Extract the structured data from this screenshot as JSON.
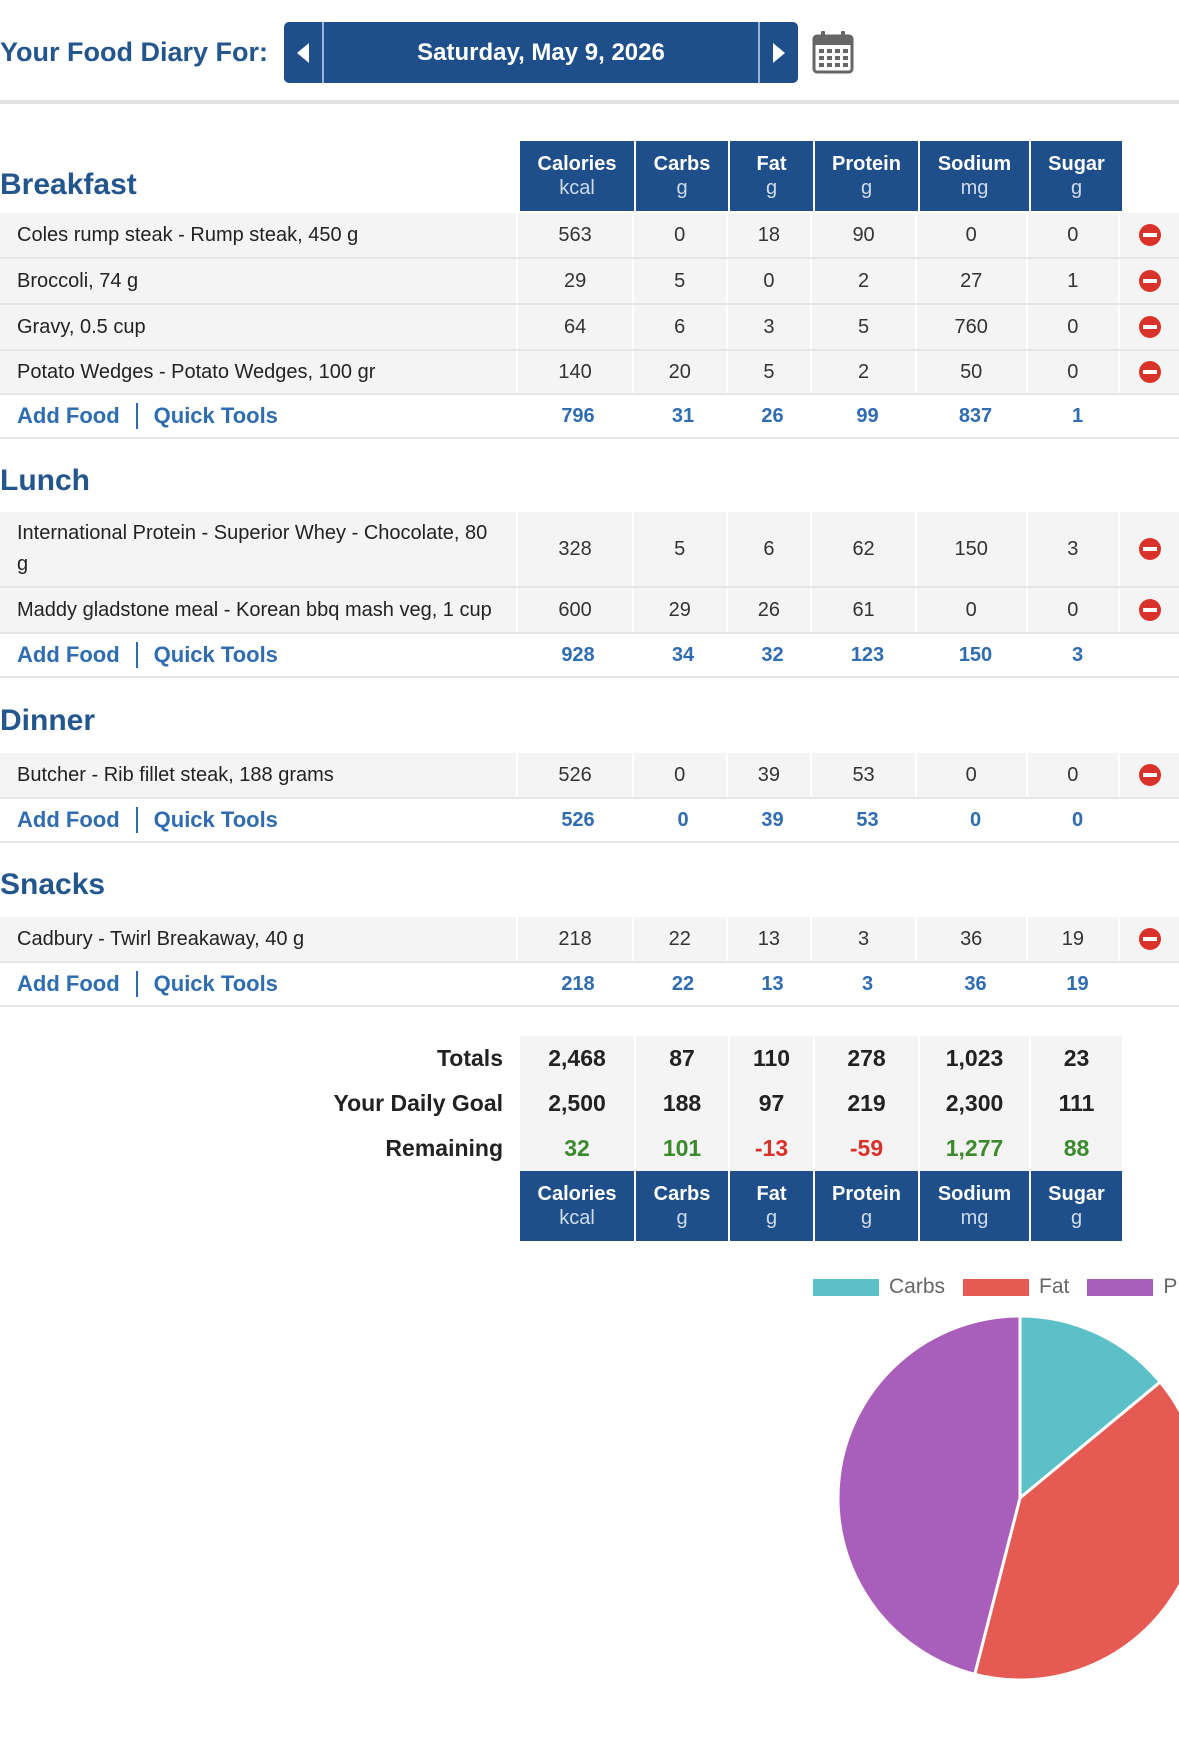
{
  "header": {
    "label": "Your Food Diary For:",
    "date": "Saturday, May 9, 2026",
    "icons": {
      "prev": "chevron-left-icon",
      "next": "chevron-right-icon",
      "calendar": "calendar-icon"
    }
  },
  "columns": [
    {
      "label": "Calories",
      "unit": "kcal"
    },
    {
      "label": "Carbs",
      "unit": "g"
    },
    {
      "label": "Fat",
      "unit": "g"
    },
    {
      "label": "Protein",
      "unit": "g"
    },
    {
      "label": "Sodium",
      "unit": "mg"
    },
    {
      "label": "Sugar",
      "unit": "g"
    }
  ],
  "meals": [
    {
      "title": "Breakfast",
      "entries": [
        {
          "name": "Coles rump steak - Rump steak, 450 g",
          "values": [
            "563",
            "0",
            "18",
            "90",
            "0",
            "0"
          ]
        },
        {
          "name": "Broccoli, 74 g",
          "values": [
            "29",
            "5",
            "0",
            "2",
            "27",
            "1"
          ]
        },
        {
          "name": "Gravy, 0.5 cup",
          "values": [
            "64",
            "6",
            "3",
            "5",
            "760",
            "0"
          ]
        },
        {
          "name": "Potato Wedges - Potato Wedges, 100 gr",
          "values": [
            "140",
            "20",
            "5",
            "2",
            "50",
            "0"
          ]
        }
      ],
      "totals": [
        "796",
        "31",
        "26",
        "99",
        "837",
        "1"
      ]
    },
    {
      "title": "Lunch",
      "entries": [
        {
          "name": "International Protein - Superior Whey - Chocolate, 80 g",
          "values": [
            "328",
            "5",
            "6",
            "62",
            "150",
            "3"
          ]
        },
        {
          "name": "Maddy gladstone meal - Korean bbq mash veg, 1 cup",
          "values": [
            "600",
            "29",
            "26",
            "61",
            "0",
            "0"
          ]
        }
      ],
      "totals": [
        "928",
        "34",
        "32",
        "123",
        "150",
        "3"
      ]
    },
    {
      "title": "Dinner",
      "entries": [
        {
          "name": "Butcher - Rib fillet steak, 188 grams",
          "values": [
            "526",
            "0",
            "39",
            "53",
            "0",
            "0"
          ]
        }
      ],
      "totals": [
        "526",
        "0",
        "39",
        "53",
        "0",
        "0"
      ]
    },
    {
      "title": "Snacks",
      "entries": [
        {
          "name": "Cadbury - Twirl Breakaway, 40 g",
          "values": [
            "218",
            "22",
            "13",
            "3",
            "36",
            "19"
          ]
        }
      ],
      "totals": [
        "218",
        "22",
        "13",
        "3",
        "36",
        "19"
      ]
    }
  ],
  "actions": {
    "add_food": "Add Food",
    "quick_tools": "Quick Tools"
  },
  "summary": {
    "totals": {
      "label": "Totals",
      "values": [
        "2,468",
        "87",
        "110",
        "278",
        "1,023",
        "23"
      ]
    },
    "goal": {
      "label": "Your Daily Goal",
      "values": [
        "2,500",
        "188",
        "97",
        "219",
        "2,300",
        "111"
      ]
    },
    "remaining": {
      "label": "Remaining",
      "values": [
        "32",
        "101",
        "-13",
        "-59",
        "1,277",
        "88"
      ]
    }
  },
  "colors": {
    "header_bg": "#1f4f8a",
    "link": "#2f6cb0",
    "positive": "#3b8a2c",
    "negative": "#d9322b"
  },
  "chart_data": {
    "type": "pie",
    "legend": [
      "Carbs",
      "Fat",
      "P"
    ],
    "slices": [
      {
        "name": "Carbs",
        "value": 14,
        "color": "#5bc0c8"
      },
      {
        "name": "Fat",
        "value": 40,
        "color": "#e55a52"
      },
      {
        "name": "Protein",
        "value": 46,
        "color": "#a95ebb"
      }
    ],
    "legend_placement": "top"
  }
}
